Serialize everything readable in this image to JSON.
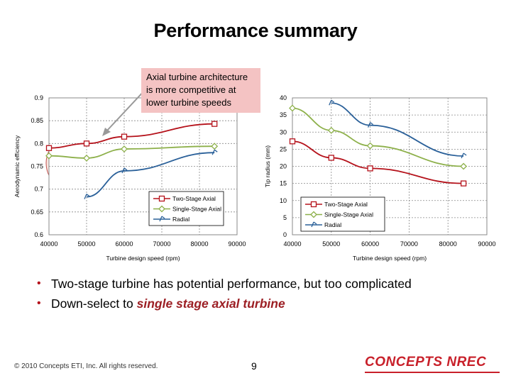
{
  "slide": {
    "title": "Performance summary",
    "callout": "Axial turbine architecture is more competitive at lower turbine speeds",
    "bullets": [
      {
        "text": "Two-stage turbine has potential performance, but too complicated"
      },
      {
        "prefix": "Down-select to ",
        "emphasis": "single stage axial turbine"
      }
    ],
    "footer": {
      "copyright": "© 2010 Concepts ETI, Inc. All rights reserved.",
      "page_number": "9",
      "logo": "CONCEPTS NREC"
    }
  },
  "colors": {
    "two_stage": "#b5121b",
    "single_stage": "#8db04a",
    "radial": "#2a6099",
    "bullet": "#b5121b",
    "emphasis": "#9c1f24",
    "callout_bg": "#f4c3c3",
    "highlight_ellipse": "#f3cfc4"
  },
  "chart_data": [
    {
      "type": "line",
      "xlabel": "Turbine design speed (rpm)",
      "ylabel": "Aerodynamic efficiency",
      "xlim": [
        40000,
        90000
      ],
      "ylim": [
        0.6,
        0.9
      ],
      "x_ticks": [
        "40000",
        "50000",
        "60000",
        "70000",
        "80000",
        "90000"
      ],
      "y_ticks": [
        "0.6",
        "0.65",
        "0.7",
        "0.75",
        "0.8",
        "0.85",
        "0.9"
      ],
      "grid": true,
      "legend_position": "bottom-right",
      "series": [
        {
          "name": "Two-Stage Axial",
          "marker": "square",
          "x": [
            40000,
            50000,
            60000,
            84000
          ],
          "y": [
            0.79,
            0.8,
            0.815,
            0.843
          ]
        },
        {
          "name": "Single-Stage Axial",
          "marker": "diamond",
          "x": [
            40000,
            50000,
            60000,
            84000
          ],
          "y": [
            0.773,
            0.768,
            0.788,
            0.794
          ]
        },
        {
          "name": "Radial",
          "marker": "tri",
          "x": [
            50000,
            60000,
            84000
          ],
          "y": [
            0.683,
            0.74,
            0.78
          ]
        }
      ]
    },
    {
      "type": "line",
      "xlabel": "Turbine design speed (rpm)",
      "ylabel": "Tip radius (mm)",
      "xlim": [
        40000,
        90000
      ],
      "ylim": [
        0,
        40
      ],
      "x_ticks": [
        "40000",
        "50000",
        "60000",
        "70000",
        "80000",
        "90000"
      ],
      "y_ticks": [
        "0",
        "5",
        "10",
        "15",
        "20",
        "25",
        "30",
        "35",
        "40"
      ],
      "grid": true,
      "legend_position": "bottom-left",
      "series": [
        {
          "name": "Two-Stage Axial",
          "marker": "square",
          "x": [
            40000,
            50000,
            60000,
            84000
          ],
          "y": [
            27.3,
            22.5,
            19.4,
            15
          ]
        },
        {
          "name": "Single-Stage Axial",
          "marker": "diamond",
          "x": [
            40000,
            50000,
            60000,
            84000
          ],
          "y": [
            37,
            30.5,
            26,
            20
          ]
        },
        {
          "name": "Radial",
          "marker": "tri",
          "x": [
            50000,
            60000,
            84000
          ],
          "y": [
            38.5,
            32,
            23
          ]
        }
      ]
    }
  ]
}
